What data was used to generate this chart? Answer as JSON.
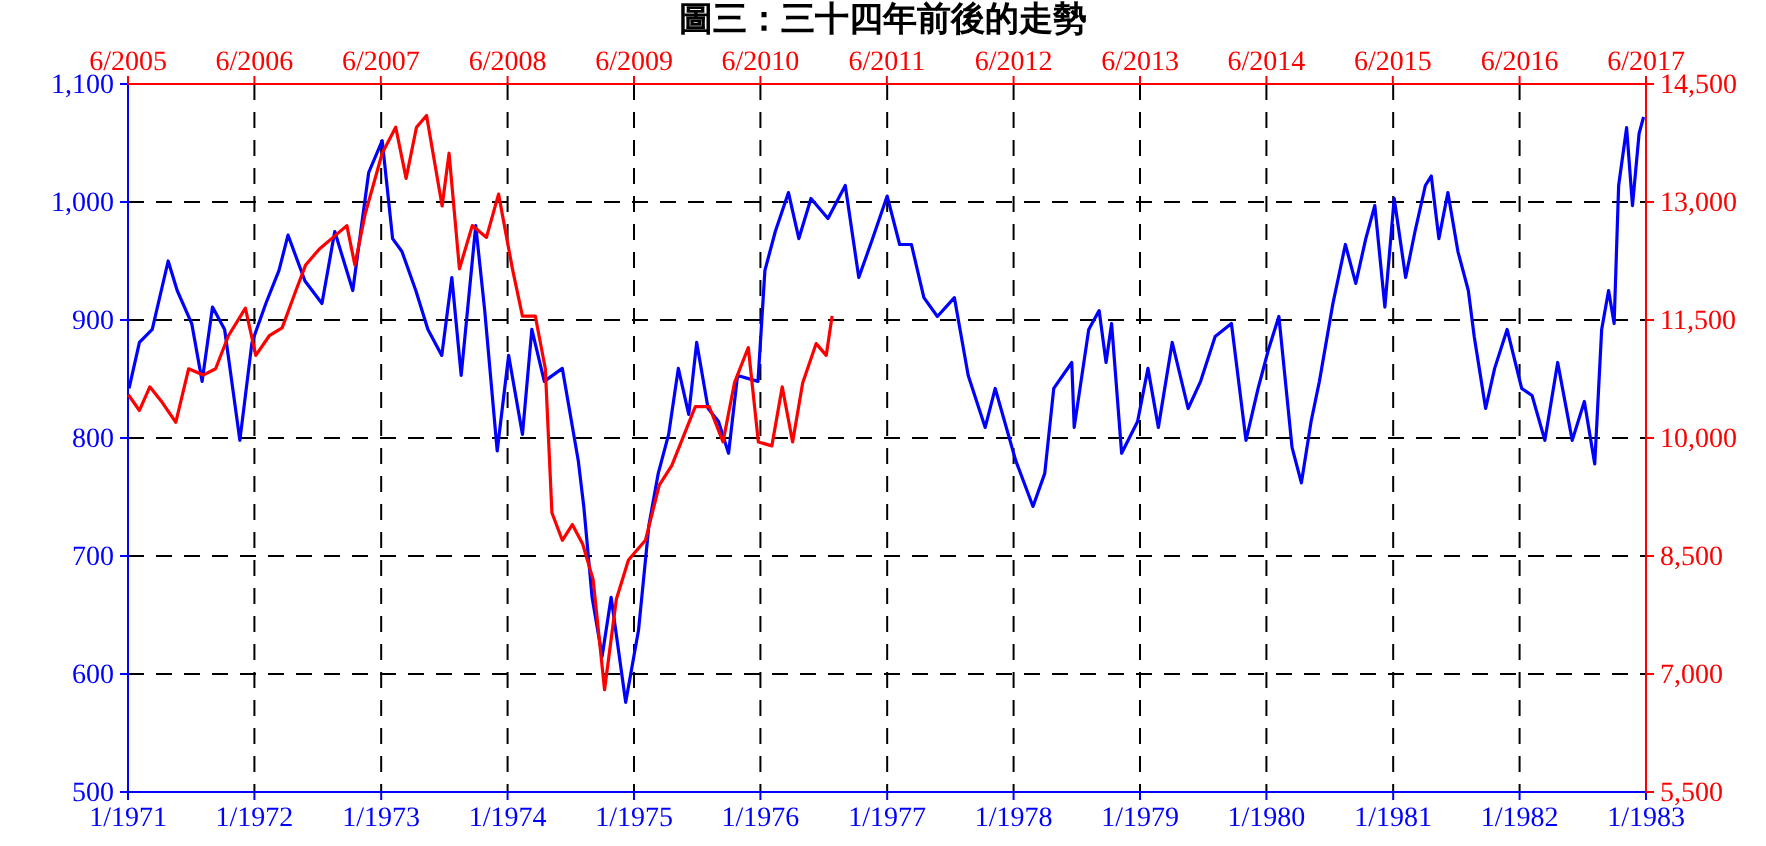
{
  "chart_data": [
    {
      "type": "line",
      "title": "圖三：三十四年前後的走勢",
      "xlim": [
        "1971-01",
        "1983-01"
      ],
      "xticks": [
        {
          "value": "1971-01",
          "label": "1/1971"
        },
        {
          "value": "1972-01",
          "label": "1/1972"
        },
        {
          "value": "1973-01",
          "label": "1/1973"
        },
        {
          "value": "1974-01",
          "label": "1/1974"
        },
        {
          "value": "1975-01",
          "label": "1/1975"
        },
        {
          "value": "1976-01",
          "label": "1/1976"
        },
        {
          "value": "1977-01",
          "label": "1/1977"
        },
        {
          "value": "1978-01",
          "label": "1/1978"
        },
        {
          "value": "1979-01",
          "label": "1/1979"
        },
        {
          "value": "1980-01",
          "label": "1/1980"
        },
        {
          "value": "1981-01",
          "label": "1/1981"
        },
        {
          "value": "1982-01",
          "label": "1/1982"
        },
        {
          "value": "1983-01",
          "label": "1/1983"
        }
      ],
      "ylim": [
        500,
        1100
      ],
      "yticks": [
        500,
        600,
        700,
        800,
        900,
        {
          "value": 1000,
          "label": "1,000"
        },
        {
          "value": 1100,
          "label": "1,100"
        }
      ],
      "grid": true,
      "line_style": "solid",
      "marker": "none",
      "series": [
        {
          "color": "#0000ff",
          "x": [
            "1971-01-04",
            "1971-02-03",
            "1971-03-12",
            "1971-04-27",
            "1971-05-23",
            "1971-07-04",
            "1971-08-03",
            "1971-09-02",
            "1971-10-07",
            "1971-11-20",
            "1971-12-25",
            "1972-02-03",
            "1972-03-12",
            "1972-04-07",
            "1972-05-26",
            "1972-07-14",
            "1972-08-20",
            "1972-10-11",
            "1972-11-26",
            "1973-01-04",
            "1973-02-03",
            "1973-03-02",
            "1973-04-11",
            "1973-05-16",
            "1973-06-25",
            "1973-07-24",
            "1973-08-20",
            "1973-10-01",
            "1973-10-27",
            "1973-12-02",
            "1974-01-04",
            "1974-02-13",
            "1974-03-12",
            "1974-04-17",
            "1974-06-08",
            "1974-07-24",
            "1974-08-09",
            "1974-09-02",
            "1974-10-01",
            "1974-10-27",
            "1974-12-08",
            "1974-12-25",
            "1975-01-14",
            "1975-02-13",
            "1975-03-12",
            "1975-04-11",
            "1975-05-09",
            "1975-06-08",
            "1975-07-01",
            "1975-08-03",
            "1975-09-02",
            "1975-10-01",
            "1975-10-27",
            "1975-12-25",
            "1976-01-14",
            "1976-02-13",
            "1976-03-22",
            "1976-04-21",
            "1976-05-26",
            "1976-07-14",
            "1976-09-02",
            "1976-10-11",
            "1976-11-20",
            "1977-01-01",
            "1977-02-06",
            "1977-03-12",
            "1977-04-17",
            "1977-05-26",
            "1977-07-14",
            "1977-08-23",
            "1977-10-11",
            "1977-11-09",
            "1978-01-07",
            "1978-02-26",
            "1978-04-01",
            "1978-04-27",
            "1978-06-18",
            "1978-06-25",
            "1978-08-06",
            "1978-09-05",
            "1978-09-25",
            "1978-10-11",
            "1978-11-09",
            "1978-12-25",
            "1979-01-24",
            "1979-02-23",
            "1979-04-04",
            "1979-05-20",
            "1979-06-25",
            "1979-08-06",
            "1979-09-22",
            "1979-11-03",
            "1979-12-08",
            "1980-01-07",
            "1980-02-06",
            "1980-03-15",
            "1980-04-11",
            "1980-05-09",
            "1980-06-02",
            "1980-07-11",
            "1980-08-16",
            "1980-09-15",
            "1980-10-14",
            "1980-11-09",
            "1980-12-08",
            "1981-01-04",
            "1981-02-06",
            "1981-03-05",
            "1981-04-04",
            "1981-04-21",
            "1981-05-13",
            "1981-06-08",
            "1981-07-07",
            "1981-08-06",
            "1981-08-23",
            "1981-09-25",
            "1981-10-21",
            "1981-11-26",
            "1982-01-07",
            "1982-02-06",
            "1982-03-15",
            "1982-04-21",
            "1982-06-02",
            "1982-07-07",
            "1982-08-06",
            "1982-08-26",
            "1982-09-15",
            "1982-10-01",
            "1982-10-14",
            "1982-11-06",
            "1982-11-23",
            "1982-12-12",
            "1982-12-25"
          ],
          "values": [
            842,
            881,
            892,
            950,
            925,
            897,
            848,
            911,
            892,
            798,
            881,
            914,
            942,
            972,
            933,
            914,
            975,
            925,
            1025,
            1052,
            969,
            958,
            925,
            892,
            870,
            936,
            853,
            980,
            908,
            789,
            870,
            803,
            892,
            848,
            859,
            781,
            742,
            665,
            615,
            665,
            576,
            604,
            637,
            726,
            770,
            803,
            859,
            820,
            881,
            825,
            814,
            787,
            853,
            848,
            942,
            975,
            1008,
            969,
            1003,
            986,
            1014,
            936,
            969,
            1005,
            964,
            964,
            919,
            903,
            919,
            853,
            809,
            842,
            781,
            742,
            770,
            842,
            864,
            809,
            892,
            908,
            864,
            897,
            787,
            814,
            859,
            809,
            881,
            825,
            848,
            886,
            897,
            798,
            842,
            875,
            903,
            792,
            762,
            814,
            848,
            914,
            964,
            931,
            969,
            997,
            911,
            1003,
            936,
            975,
            1014,
            1022,
            969,
            1008,
            958,
            925,
            886,
            825,
            859,
            892,
            842,
            836,
            798,
            864,
            798,
            831,
            778,
            892,
            925,
            897,
            1014,
            1063,
            997,
            1058,
            1072
          ]
        }
      ]
    },
    {
      "type": "line",
      "xlim": [
        "2005-06",
        "2017-06"
      ],
      "xticks": [
        {
          "value": "2005-06",
          "label": "6/2005"
        },
        {
          "value": "2006-06",
          "label": "6/2006"
        },
        {
          "value": "2007-06",
          "label": "6/2007"
        },
        {
          "value": "2008-06",
          "label": "6/2008"
        },
        {
          "value": "2009-06",
          "label": "6/2009"
        },
        {
          "value": "2010-06",
          "label": "6/2010"
        },
        {
          "value": "2011-06",
          "label": "6/2011"
        },
        {
          "value": "2012-06",
          "label": "6/2012"
        },
        {
          "value": "2013-06",
          "label": "6/2013"
        },
        {
          "value": "2014-06",
          "label": "6/2014"
        },
        {
          "value": "2015-06",
          "label": "6/2015"
        },
        {
          "value": "2016-06",
          "label": "6/2016"
        },
        {
          "value": "2017-06",
          "label": "6/2017"
        }
      ],
      "ylim": [
        5500,
        14500
      ],
      "yticks": [
        {
          "value": 5500,
          "label": "5,500"
        },
        {
          "value": 7000,
          "label": "7,000"
        },
        {
          "value": 8500,
          "label": "8,500"
        },
        {
          "value": 10000,
          "label": "10,000"
        },
        {
          "value": 11500,
          "label": "11,500"
        },
        {
          "value": 13000,
          "label": "13,000"
        },
        {
          "value": 14500,
          "label": "14,500"
        }
      ],
      "line_style": "solid",
      "marker": "none",
      "series": [
        {
          "color": "#ff0000",
          "x": [
            "2005-06-02",
            "2005-07-04",
            "2005-08-03",
            "2005-09-08",
            "2005-10-17",
            "2005-11-23",
            "2006-01-04",
            "2006-02-09",
            "2006-03-18",
            "2006-05-06",
            "2006-06-05",
            "2006-07-14",
            "2006-08-20",
            "2006-10-01",
            "2006-10-27",
            "2006-12-05",
            "2007-01-14",
            "2007-02-23",
            "2007-03-18",
            "2007-04-17",
            "2007-06-05",
            "2007-07-14",
            "2007-08-13",
            "2007-09-12",
            "2007-10-11",
            "2007-11-25",
            "2007-12-15",
            "2008-01-14",
            "2008-02-20",
            "2008-04-01",
            "2008-05-06",
            "2008-06-15",
            "2008-07-14",
            "2008-08-20",
            "2008-09-18",
            "2008-10-07",
            "2008-11-06",
            "2008-12-05",
            "2009-01-04",
            "2009-02-03",
            "2009-03-08",
            "2009-04-11",
            "2009-05-16",
            "2009-07-04",
            "2009-08-13",
            "2009-09-18",
            "2009-11-25",
            "2010-01-04",
            "2010-02-13",
            "2010-03-18",
            "2010-04-27",
            "2010-05-26",
            "2010-07-04",
            "2010-08-03",
            "2010-09-02",
            "2010-10-01",
            "2010-11-09",
            "2010-12-08",
            "2010-12-25"
          ],
          "values": [
            10550,
            10350,
            10650,
            10450,
            10200,
            10880,
            10800,
            10880,
            11300,
            11650,
            11050,
            11300,
            11400,
            11900,
            12200,
            12400,
            12550,
            12700,
            12200,
            12850,
            13620,
            13950,
            13300,
            13950,
            14100,
            12950,
            13620,
            12150,
            12700,
            12550,
            13100,
            12150,
            11550,
            11550,
            10880,
            9050,
            8700,
            8900,
            8650,
            8200,
            6800,
            7950,
            8450,
            8700,
            9400,
            9650,
            10400,
            10400,
            9950,
            10700,
            11150,
            9950,
            9900,
            10650,
            9950,
            10700,
            11200,
            11050,
            11550
          ]
        }
      ]
    }
  ]
}
